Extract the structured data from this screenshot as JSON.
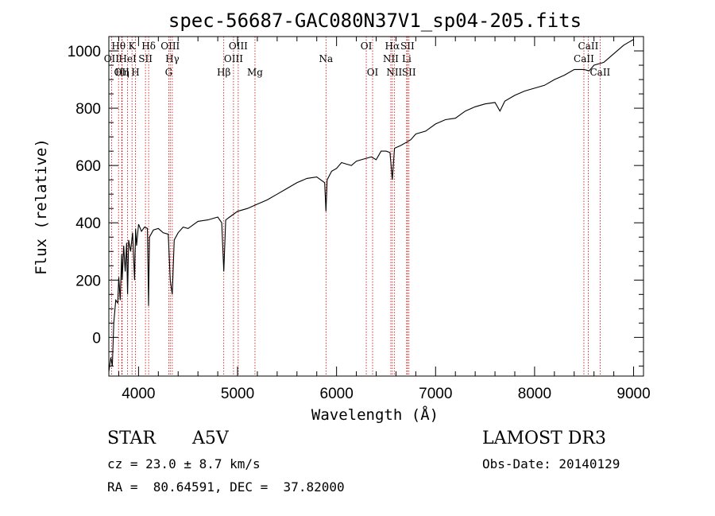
{
  "chart_data": {
    "type": "line",
    "title": "spec-56687-GAC080N37V1_sp04-205.fits",
    "xlabel": "Wavelength (Å)",
    "ylabel": "Flux (relative)",
    "xlim": [
      3700,
      9100
    ],
    "ylim": [
      -135,
      1050
    ],
    "xticks": [
      4000,
      5000,
      6000,
      7000,
      8000,
      9000
    ],
    "xtick_labels": [
      "4000",
      "5000",
      "6000",
      "7000",
      "8000",
      "9000"
    ],
    "yticks": [
      0,
      200,
      400,
      600,
      800,
      1000
    ],
    "ytick_labels": [
      "0",
      "200",
      "400",
      "600",
      "800",
      "1000"
    ],
    "series": [
      {
        "name": "spectrum",
        "x": [
          3700,
          3720,
          3735,
          3750,
          3770,
          3790,
          3800,
          3815,
          3830,
          3835,
          3850,
          3865,
          3880,
          3889,
          3900,
          3920,
          3940,
          3960,
          3970,
          3980,
          4000,
          4030,
          4060,
          4090,
          4101,
          4110,
          4150,
          4200,
          4250,
          4300,
          4320,
          4340,
          4360,
          4400,
          4450,
          4500,
          4600,
          4700,
          4800,
          4840,
          4861,
          4880,
          4920,
          5000,
          5100,
          5200,
          5300,
          5400,
          5500,
          5600,
          5700,
          5800,
          5880,
          5893,
          5905,
          5950,
          6000,
          6050,
          6100,
          6150,
          6200,
          6250,
          6300,
          6350,
          6400,
          6450,
          6500,
          6540,
          6563,
          6585,
          6650,
          6700,
          6750,
          6800,
          6900,
          7000,
          7100,
          7200,
          7300,
          7400,
          7500,
          7600,
          7650,
          7700,
          7800,
          7900,
          8000,
          8100,
          8200,
          8300,
          8400,
          8500,
          8550,
          8600,
          8700,
          8800,
          8900,
          8950,
          9000
        ],
        "y": [
          -120,
          -70,
          -100,
          50,
          130,
          120,
          210,
          130,
          290,
          200,
          320,
          230,
          330,
          150,
          340,
          300,
          365,
          200,
          380,
          320,
          395,
          370,
          385,
          380,
          110,
          350,
          375,
          380,
          365,
          360,
          200,
          150,
          340,
          365,
          385,
          380,
          405,
          410,
          420,
          400,
          230,
          410,
          420,
          440,
          450,
          465,
          480,
          500,
          520,
          540,
          555,
          560,
          540,
          440,
          550,
          580,
          590,
          610,
          605,
          600,
          615,
          620,
          625,
          630,
          620,
          650,
          650,
          645,
          550,
          660,
          670,
          680,
          690,
          710,
          720,
          745,
          760,
          765,
          790,
          805,
          815,
          820,
          790,
          825,
          845,
          860,
          870,
          880,
          900,
          915,
          935,
          935,
          930,
          950,
          960,
          990,
          1020,
          1030,
          1040
        ]
      }
    ],
    "emission_lines": [
      {
        "label": "OII",
        "wavelength": 3727,
        "row": 2
      },
      {
        "label": "Hθ",
        "wavelength": 3798,
        "row": 1
      },
      {
        "label": "OII",
        "wavelength": 3830,
        "row": 3
      },
      {
        "label": "Hη",
        "wavelength": 3835,
        "row": 3
      },
      {
        "label": "HeI",
        "wavelength": 3889,
        "row": 2
      },
      {
        "label": "K",
        "wavelength": 3934,
        "row": 1
      },
      {
        "label": "H",
        "wavelength": 3969,
        "row": 3
      },
      {
        "label": "SII",
        "wavelength": 4070,
        "row": 2
      },
      {
        "label": "Hδ",
        "wavelength": 4102,
        "row": 1
      },
      {
        "label": "G",
        "wavelength": 4305,
        "row": 3
      },
      {
        "label": "OIII",
        "wavelength": 4320,
        "row": 1
      },
      {
        "label": "Hγ",
        "wavelength": 4341,
        "row": 2
      },
      {
        "label": "Hβ",
        "wavelength": 4861,
        "row": 3
      },
      {
        "label": "OIII",
        "wavelength": 4959,
        "row": 2
      },
      {
        "label": "OIII",
        "wavelength": 5007,
        "row": 1
      },
      {
        "label": "Mg",
        "wavelength": 5176,
        "row": 3
      },
      {
        "label": "Na",
        "wavelength": 5893,
        "row": 2
      },
      {
        "label": "OI",
        "wavelength": 6300,
        "row": 1
      },
      {
        "label": "OI",
        "wavelength": 6364,
        "row": 3
      },
      {
        "label": "NII",
        "wavelength": 6548,
        "row": 2
      },
      {
        "label": "Hα",
        "wavelength": 6563,
        "row": 1
      },
      {
        "label": "NII",
        "wavelength": 6583,
        "row": 3
      },
      {
        "label": "SII",
        "wavelength": 6716,
        "row": 1
      },
      {
        "label": "Li",
        "wavelength": 6708,
        "row": 2
      },
      {
        "label": "SII",
        "wavelength": 6731,
        "row": 3
      },
      {
        "label": "CaII",
        "wavelength": 8498,
        "row": 2
      },
      {
        "label": "CaII",
        "wavelength": 8542,
        "row": 1
      },
      {
        "label": "CaII",
        "wavelength": 8662,
        "row": 3
      }
    ]
  },
  "info": {
    "object_class": "STAR",
    "subclass": "A5V",
    "survey": "LAMOST DR3",
    "redshift_text": "cz = 23.0 ± 8.7 km/s",
    "obs_date_text": "Obs-Date: 20140129",
    "coords_text": "RA =  80.64591, DEC =  37.82000"
  },
  "colors": {
    "line_marker": "#cc0000",
    "spectrum": "#000000",
    "axes": "#000000"
  }
}
